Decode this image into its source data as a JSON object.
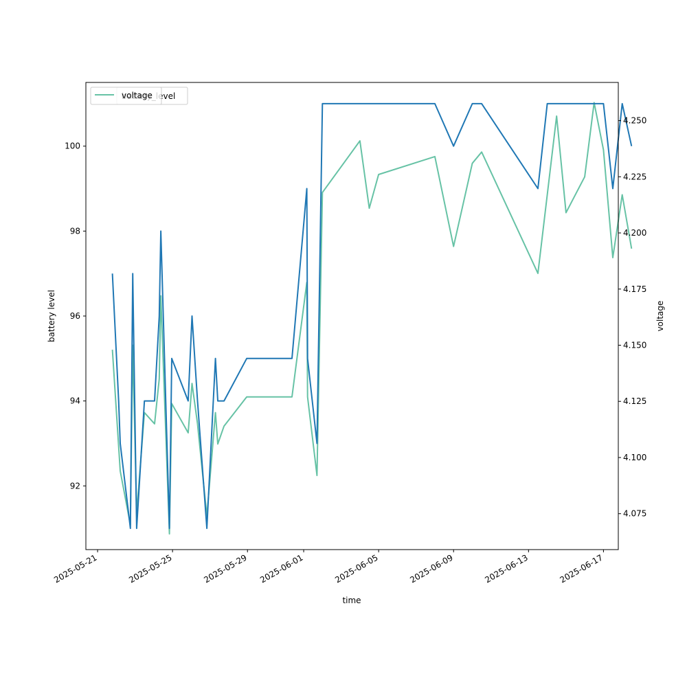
{
  "chart_data": {
    "type": "line",
    "xlabel": "time",
    "ylabel_left": "battery level",
    "ylabel_right": "voltage",
    "grid": false,
    "legend_position": "upper-left",
    "legend_entries": [
      {
        "label": "battery_level",
        "color": "#1f77b4"
      },
      {
        "label": "voltage",
        "color": "#66c2a5"
      }
    ],
    "x_range": [
      "2025-05-20T09:00",
      "2025-06-17T19:00"
    ],
    "y_left_range": [
      90.5,
      101.5
    ],
    "y_right_range": [
      4.059,
      4.267
    ],
    "x_ticks": [
      "2025-05-21",
      "2025-05-25",
      "2025-05-29",
      "2025-06-01",
      "2025-06-05",
      "2025-06-09",
      "2025-06-13",
      "2025-06-17"
    ],
    "y_left_ticks": [
      92,
      94,
      96,
      98,
      100
    ],
    "y_right_ticks": [
      4.075,
      4.1,
      4.125,
      4.15,
      4.175,
      4.2,
      4.225,
      4.25
    ],
    "series": [
      {
        "name": "battery_level",
        "axis": "left",
        "color": "#1f77b4",
        "points": [
          [
            "2025-05-21T19:00",
            97
          ],
          [
            "2025-05-22T03:00",
            94
          ],
          [
            "2025-05-22T05:00",
            93
          ],
          [
            "2025-05-22T18:00",
            91
          ],
          [
            "2025-05-22T21:00",
            97
          ],
          [
            "2025-05-23T02:00",
            91
          ],
          [
            "2025-05-23T12:00",
            94
          ],
          [
            "2025-05-24T01:00",
            94
          ],
          [
            "2025-05-24T07:00",
            96
          ],
          [
            "2025-05-24T09:00",
            98
          ],
          [
            "2025-05-24T20:00",
            91
          ],
          [
            "2025-05-24T23:00",
            95
          ],
          [
            "2025-05-25T20:00",
            94
          ],
          [
            "2025-05-26T01:00",
            96
          ],
          [
            "2025-05-26T08:00",
            94
          ],
          [
            "2025-05-26T20:00",
            91
          ],
          [
            "2025-05-27T07:00",
            95
          ],
          [
            "2025-05-27T10:00",
            94
          ],
          [
            "2025-05-27T18:00",
            94
          ],
          [
            "2025-05-28T23:00",
            95
          ],
          [
            "2025-05-31T09:00",
            95
          ],
          [
            "2025-06-01T04:00",
            99
          ],
          [
            "2025-06-01T05:00",
            95
          ],
          [
            "2025-06-01T17:00",
            93
          ],
          [
            "2025-06-02T00:00",
            101
          ],
          [
            "2025-06-08T00:00",
            101
          ],
          [
            "2025-06-09T00:00",
            100
          ],
          [
            "2025-06-10T00:00",
            101
          ],
          [
            "2025-06-10T12:00",
            101
          ],
          [
            "2025-06-13T12:00",
            99
          ],
          [
            "2025-06-14T00:00",
            101
          ],
          [
            "2025-06-17T00:00",
            101
          ],
          [
            "2025-06-17T12:00",
            99
          ],
          [
            "2025-06-18T00:00",
            101
          ],
          [
            "2025-06-18T12:00",
            100
          ]
        ]
      },
      {
        "name": "voltage",
        "axis": "right",
        "color": "#66c2a5",
        "points": [
          [
            "2025-05-21T19:00",
            4.148
          ],
          [
            "2025-05-22T05:00",
            4.094
          ],
          [
            "2025-05-22T18:00",
            4.07
          ],
          [
            "2025-05-22T21:00",
            4.15
          ],
          [
            "2025-05-23T02:00",
            4.075
          ],
          [
            "2025-05-23T12:00",
            4.12
          ],
          [
            "2025-05-24T01:00",
            4.115
          ],
          [
            "2025-05-24T07:00",
            4.135
          ],
          [
            "2025-05-24T09:00",
            4.172
          ],
          [
            "2025-05-24T20:00",
            4.066
          ],
          [
            "2025-05-24T23:00",
            4.124
          ],
          [
            "2025-05-25T20:00",
            4.111
          ],
          [
            "2025-05-26T01:00",
            4.133
          ],
          [
            "2025-05-26T08:00",
            4.115
          ],
          [
            "2025-05-26T20:00",
            4.074
          ],
          [
            "2025-05-27T07:00",
            4.12
          ],
          [
            "2025-05-27T10:00",
            4.106
          ],
          [
            "2025-05-27T18:00",
            4.114
          ],
          [
            "2025-05-28T23:00",
            4.127
          ],
          [
            "2025-05-31T09:00",
            4.127
          ],
          [
            "2025-06-01T04:00",
            4.178
          ],
          [
            "2025-06-01T05:00",
            4.127
          ],
          [
            "2025-06-01T17:00",
            4.092
          ],
          [
            "2025-06-02T00:00",
            4.218
          ],
          [
            "2025-06-04T00:00",
            4.241
          ],
          [
            "2025-06-04T12:00",
            4.211
          ],
          [
            "2025-06-05T00:00",
            4.226
          ],
          [
            "2025-06-08T00:00",
            4.234
          ],
          [
            "2025-06-09T00:00",
            4.194
          ],
          [
            "2025-06-10T00:00",
            4.231
          ],
          [
            "2025-06-10T12:00",
            4.236
          ],
          [
            "2025-06-13T12:00",
            4.182
          ],
          [
            "2025-06-14T12:00",
            4.252
          ],
          [
            "2025-06-15T00:00",
            4.209
          ],
          [
            "2025-06-16T00:00",
            4.225
          ],
          [
            "2025-06-16T12:00",
            4.258
          ],
          [
            "2025-06-17T00:00",
            4.237
          ],
          [
            "2025-06-17T12:00",
            4.189
          ],
          [
            "2025-06-18T00:00",
            4.217
          ],
          [
            "2025-06-18T12:00",
            4.193
          ]
        ]
      }
    ]
  }
}
